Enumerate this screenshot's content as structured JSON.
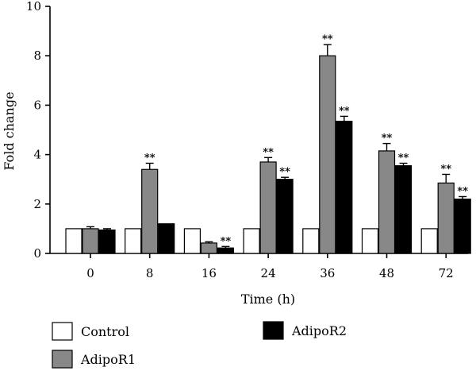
{
  "chart_data": {
    "type": "bar",
    "title": "",
    "xlabel": "Time (h)",
    "ylabel": "Fold change",
    "ylim": [
      0,
      10
    ],
    "yticks": [
      "0",
      "2",
      "4",
      "6",
      "8",
      "10"
    ],
    "categories": [
      "0",
      "8",
      "16",
      "24",
      "36",
      "48",
      "72"
    ],
    "series": [
      {
        "name": "Control",
        "color": "#ffffff",
        "values": [
          1.0,
          1.0,
          1.0,
          1.0,
          1.0,
          1.0,
          1.0
        ],
        "errors": [
          0,
          0,
          0,
          0,
          0,
          0,
          0
        ],
        "significance": [
          "",
          "",
          "",
          "",
          "",
          "",
          ""
        ]
      },
      {
        "name": "AdipoR1",
        "color": "#888888",
        "values": [
          1.0,
          3.4,
          0.42,
          3.7,
          8.0,
          4.15,
          2.85
        ],
        "errors": [
          0.08,
          0.25,
          0.05,
          0.18,
          0.45,
          0.3,
          0.35
        ],
        "significance": [
          "",
          "**",
          "",
          "**",
          "**",
          "**",
          "**"
        ]
      },
      {
        "name": "AdipoR2",
        "color": "#000000",
        "values": [
          0.95,
          1.2,
          0.22,
          3.0,
          5.35,
          3.55,
          2.2
        ],
        "errors": [
          0.05,
          0,
          0.06,
          0.08,
          0.2,
          0.1,
          0.1
        ],
        "significance": [
          "",
          "",
          "**",
          "**",
          "**",
          "**",
          "**"
        ]
      }
    ],
    "legend": "bottom"
  }
}
